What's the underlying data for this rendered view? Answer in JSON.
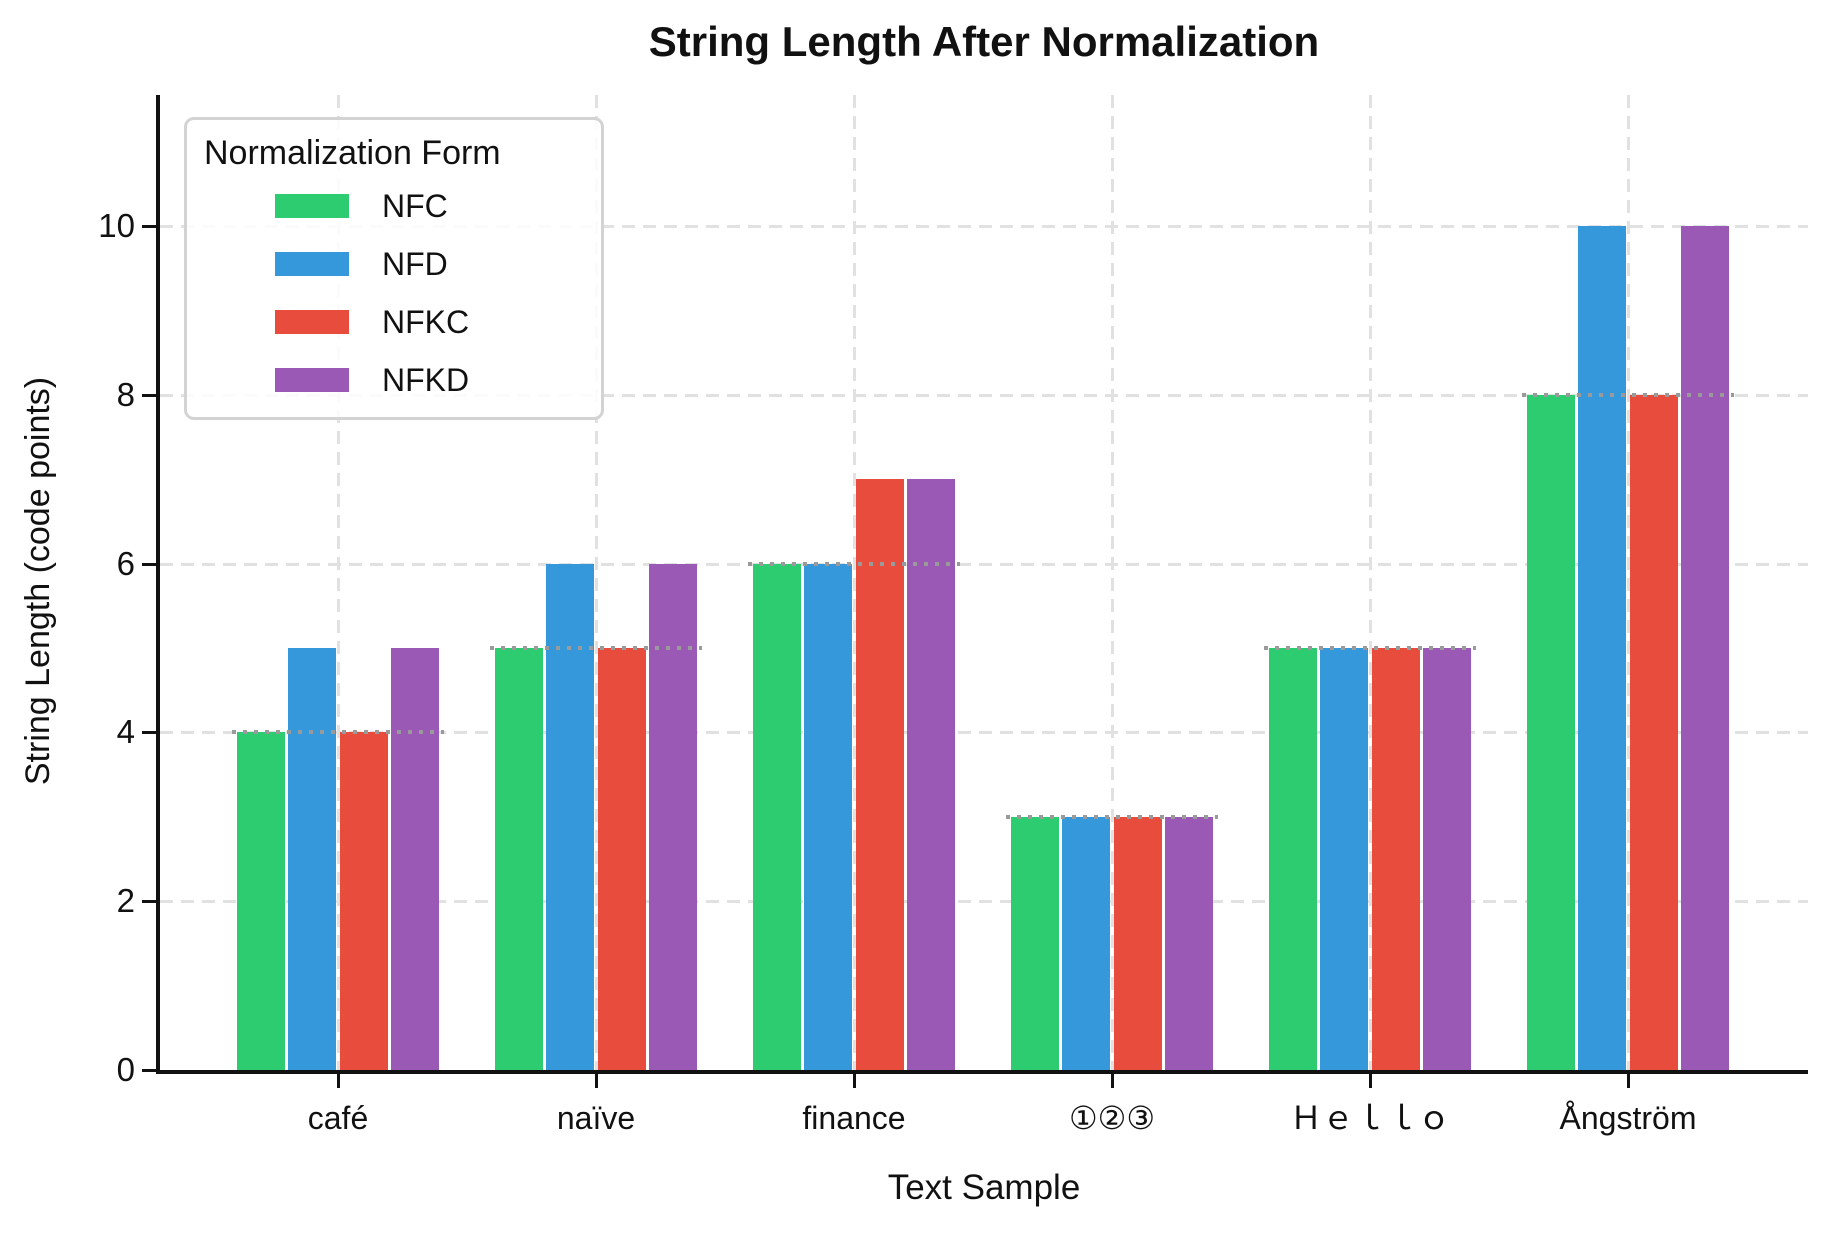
{
  "chart_data": {
    "type": "bar",
    "title": "String Length After Normalization",
    "xlabel": "Text Sample",
    "ylabel": "String Length (code points)",
    "categories": [
      "café",
      "naïve",
      "finance",
      "①②③",
      "Ｈｅｌｌｏ",
      "Ångström"
    ],
    "series": [
      {
        "name": "NFC",
        "color": "#2ecc71",
        "values": [
          4,
          5,
          6,
          3,
          5,
          8
        ]
      },
      {
        "name": "NFD",
        "color": "#3498db",
        "values": [
          5,
          6,
          6,
          3,
          5,
          10
        ]
      },
      {
        "name": "NFKC",
        "color": "#e74c3c",
        "values": [
          4,
          5,
          7,
          3,
          5,
          8
        ]
      },
      {
        "name": "NFKD",
        "color": "#9b59b6",
        "values": [
          5,
          6,
          7,
          3,
          5,
          10
        ]
      }
    ],
    "original_length_markers": [
      4,
      5,
      6,
      3,
      5,
      8
    ],
    "yticks": [
      0,
      2,
      4,
      6,
      8,
      10
    ],
    "ylim": [
      0,
      11.5
    ],
    "grid": true,
    "legend": {
      "title": "Normalization Form",
      "position": "upper left"
    }
  }
}
